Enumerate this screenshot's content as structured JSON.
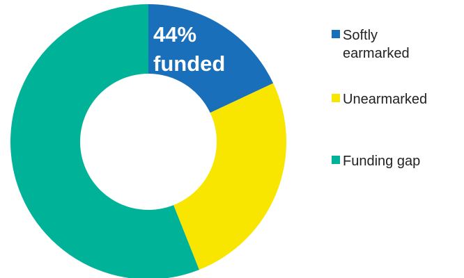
{
  "chart_data": {
    "type": "donut",
    "annotation": [
      "44%",
      "funded"
    ],
    "categories": [
      "Softly earmarked",
      "Unearmarked",
      "Funding gap"
    ],
    "values": [
      18,
      26,
      56
    ],
    "colors": [
      "#1a6fba",
      "#f9e600",
      "#00b398"
    ]
  }
}
